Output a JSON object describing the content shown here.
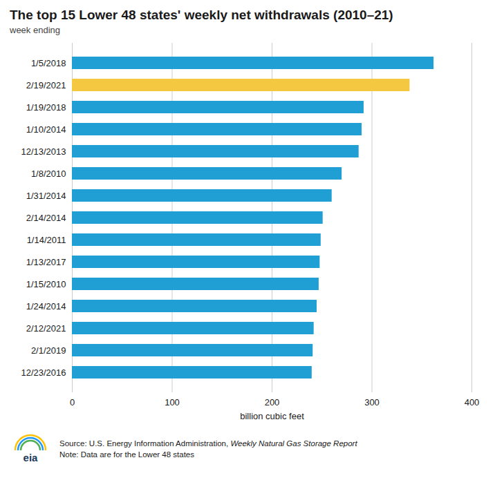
{
  "chart_data": {
    "type": "bar",
    "orientation": "horizontal",
    "title": "The top 15 Lower 48 states' weekly net withdrawals (2010–21)",
    "subtitle": "week ending",
    "xlabel": "billion cubic feet",
    "categories": [
      "1/5/2018",
      "2/19/2021",
      "1/19/2018",
      "1/10/2014",
      "12/13/2013",
      "1/8/2010",
      "1/31/2014",
      "2/14/2014",
      "1/14/2011",
      "1/13/2017",
      "1/15/2010",
      "1/24/2014",
      "2/12/2021",
      "2/1/2019",
      "12/23/2016"
    ],
    "values": [
      362,
      338,
      292,
      290,
      287,
      270,
      260,
      251,
      249,
      248,
      247,
      245,
      242,
      241,
      240
    ],
    "colors": [
      "#1f9fd4",
      "#f5c842",
      "#1f9fd4",
      "#1f9fd4",
      "#1f9fd4",
      "#1f9fd4",
      "#1f9fd4",
      "#1f9fd4",
      "#1f9fd4",
      "#1f9fd4",
      "#1f9fd4",
      "#1f9fd4",
      "#1f9fd4",
      "#1f9fd4",
      "#1f9fd4"
    ],
    "xlim": [
      0,
      400
    ],
    "xticks": [
      0,
      100,
      200,
      300,
      400
    ],
    "grid": true,
    "source": "Source: U.S. Energy Information Administration,",
    "source_publication": "Weekly Natural Gas Storage Report",
    "note": "Note: Data are for the Lower 48 states",
    "logo": "eia"
  }
}
